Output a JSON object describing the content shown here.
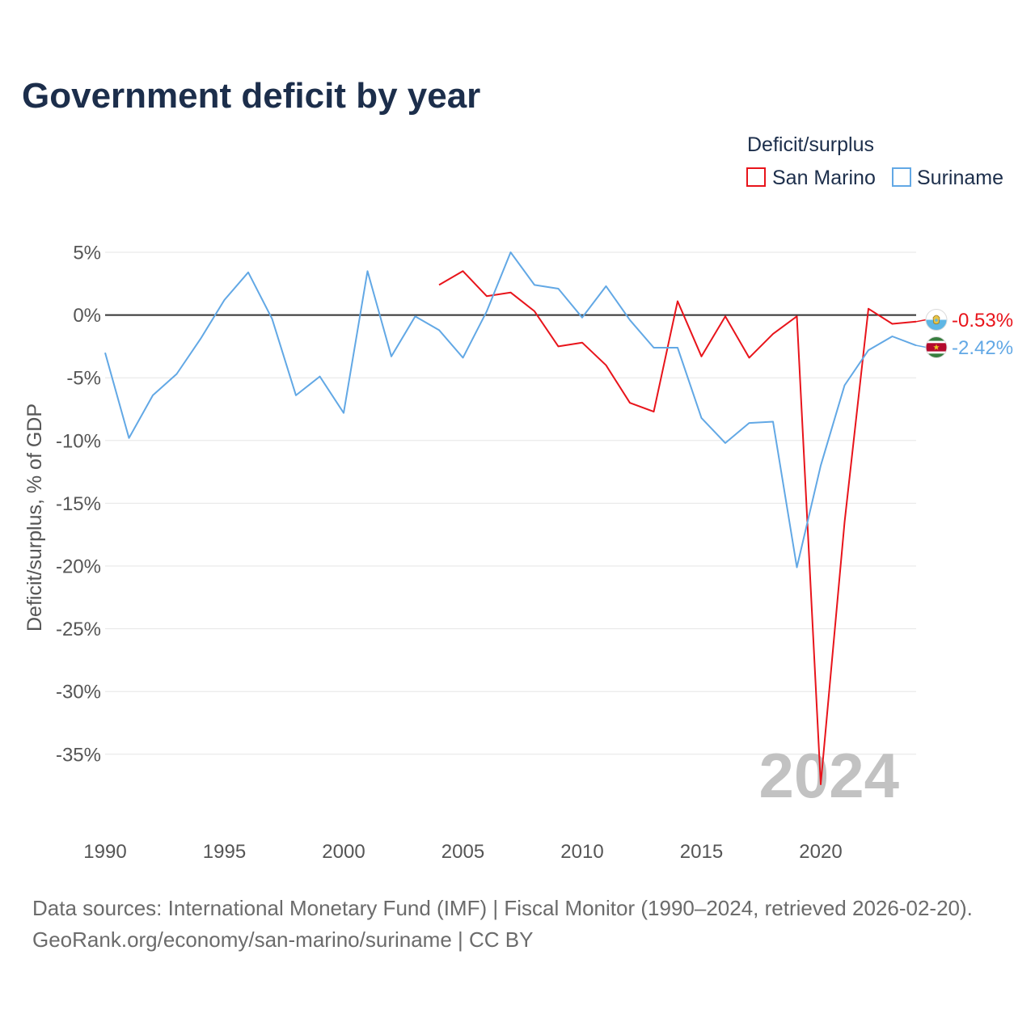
{
  "chart_data": {
    "type": "line",
    "title": "Government deficit by year",
    "ylabel": "Deficit/surplus, % of GDP",
    "xlim": [
      1990,
      2024
    ],
    "ylim": [
      -40,
      5
    ],
    "grid": true,
    "legend": {
      "title": "Deficit/surplus",
      "position": "top-right"
    },
    "x_ticks": [
      {
        "value": 1990,
        "label": "1990"
      },
      {
        "value": 1995,
        "label": "1995"
      },
      {
        "value": 2000,
        "label": "2000"
      },
      {
        "value": 2005,
        "label": "2005"
      },
      {
        "value": 2010,
        "label": "2010"
      },
      {
        "value": 2015,
        "label": "2015"
      },
      {
        "value": 2020,
        "label": "2020"
      }
    ],
    "y_ticks": [
      {
        "value": 5,
        "label": "5%"
      },
      {
        "value": 0,
        "label": "0%"
      },
      {
        "value": -5,
        "label": "-5%"
      },
      {
        "value": -10,
        "label": "-10%"
      },
      {
        "value": -15,
        "label": "-15%"
      },
      {
        "value": -20,
        "label": "-20%"
      },
      {
        "value": -25,
        "label": "-25%"
      },
      {
        "value": -30,
        "label": "-30%"
      },
      {
        "value": -35,
        "label": "-35%"
      }
    ],
    "series": [
      {
        "name": "San Marino",
        "color": "#e8141b",
        "icon": "san-marino-flag-icon",
        "end_label": "-0.53%",
        "x": [
          2004,
          2005,
          2006,
          2007,
          2008,
          2009,
          2010,
          2011,
          2012,
          2013,
          2014,
          2015,
          2016,
          2017,
          2018,
          2019,
          2020,
          2021,
          2022,
          2023,
          2024
        ],
        "values": [
          2.4,
          3.5,
          1.5,
          1.8,
          0.3,
          -2.5,
          -2.2,
          -4.0,
          -7.0,
          -7.7,
          1.1,
          -3.3,
          -0.1,
          -3.4,
          -1.5,
          -0.1,
          -37.4,
          -16.5,
          0.5,
          -0.7,
          -0.53
        ]
      },
      {
        "name": "Suriname",
        "color": "#62a8e5",
        "icon": "suriname-flag-icon",
        "end_label": "-2.42%",
        "x": [
          1990,
          1991,
          1992,
          1993,
          1994,
          1995,
          1996,
          1997,
          1998,
          1999,
          2000,
          2001,
          2002,
          2003,
          2004,
          2005,
          2006,
          2007,
          2008,
          2009,
          2010,
          2011,
          2012,
          2013,
          2014,
          2015,
          2016,
          2017,
          2018,
          2019,
          2020,
          2021,
          2022,
          2023,
          2024
        ],
        "values": [
          -3.0,
          -9.8,
          -6.4,
          -4.7,
          -1.9,
          1.2,
          3.4,
          -0.3,
          -6.4,
          -4.9,
          -7.8,
          3.5,
          -3.3,
          -0.1,
          -1.2,
          -3.4,
          0.3,
          5.0,
          2.4,
          2.1,
          -0.2,
          2.3,
          -0.4,
          -2.6,
          -2.6,
          -8.2,
          -10.2,
          -8.6,
          -8.5,
          -20.1,
          -12.0,
          -5.6,
          -2.8,
          -1.7,
          -2.42
        ]
      }
    ],
    "watermark": "2024"
  },
  "footer": {
    "sources": "Data sources: International Monetary Fund (IMF) | Fiscal Monitor (1990–2024, retrieved 2026-02-20).",
    "link": "GeoRank.org/economy/san-marino/suriname | CC BY"
  }
}
